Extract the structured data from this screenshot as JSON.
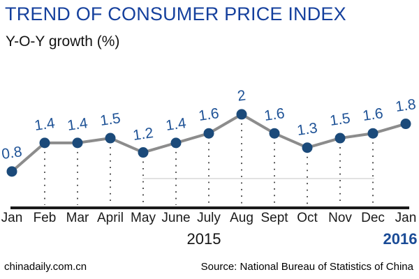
{
  "header": {
    "title": "TREND OF CONSUMER PRICE INDEX",
    "subtitle": "Y-O-Y growth (%)"
  },
  "footer": {
    "watermark": "chinadaily.com.cn",
    "source": "Source: National Bureau of Statistics of China"
  },
  "chart_data": {
    "type": "line",
    "title": "TREND OF CONSUMER PRICE INDEX",
    "ylabel": "Y-O-Y growth (%)",
    "categories": [
      "Jan",
      "Feb",
      "Mar",
      "April",
      "May",
      "June",
      "July",
      "Aug",
      "Sept",
      "Oct",
      "Nov",
      "Dec",
      "Jan"
    ],
    "values": [
      0.8,
      1.4,
      1.4,
      1.5,
      1.2,
      1.4,
      1.6,
      2,
      1.6,
      1.3,
      1.5,
      1.6,
      1.8
    ],
    "value_labels": [
      "0.8",
      "1.4",
      "1.4",
      "1.5",
      "1.2",
      "1.4",
      "1.6",
      "2",
      "1.6",
      "1.3",
      "1.5",
      "1.6",
      "1.8"
    ],
    "years": {
      "left": "2015",
      "right": "2016"
    },
    "ylim": [
      0,
      2.9
    ],
    "legend": "none",
    "grid": "dotted vertical drop-lines under each point (Feb-Dec), one faint horizontal rule",
    "colors": {
      "title_blue": "#15409d",
      "label_blue": "#1e5296",
      "marker_navy": "#1b4a7a",
      "line_gray": "#8c8c8c",
      "axis_black": "#1a1a1a",
      "drop_dot_gray": "#3a3a3a",
      "faint_rule_gray": "#d9d9d9",
      "year_2016_blue": "#1a4b96"
    }
  }
}
